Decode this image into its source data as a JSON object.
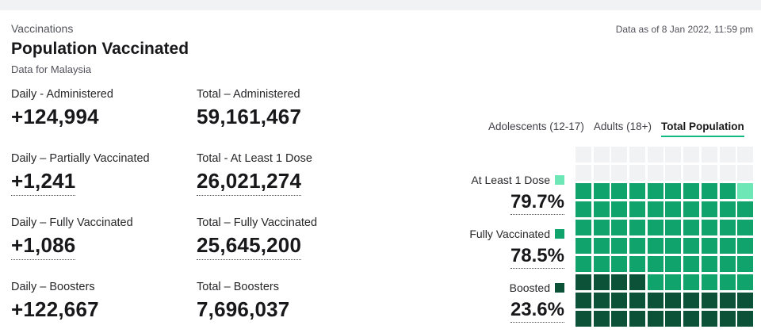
{
  "header": {
    "eyebrow": "Vaccinations",
    "title": "Population Vaccinated",
    "subtitle": "Data for Malaysia",
    "as_of": "Data as of 8 Jan 2022, 11:59 pm"
  },
  "stats": {
    "daily_administered": {
      "label": "Daily - Administered",
      "value": "+124,994"
    },
    "total_administered": {
      "label": "Total – Administered",
      "value": "59,161,467"
    },
    "daily_partial": {
      "label": "Daily – Partially Vaccinated",
      "value": "+1,241"
    },
    "total_at_least_1": {
      "label": "Total - At Least 1 Dose",
      "value": "26,021,274"
    },
    "daily_full": {
      "label": "Daily – Fully Vaccinated",
      "value": "+1,086"
    },
    "total_full": {
      "label": "Total – Fully Vaccinated",
      "value": "25,645,200"
    },
    "daily_boosters": {
      "label": "Daily – Boosters",
      "value": "+122,667"
    },
    "total_boosters": {
      "label": "Total – Boosters",
      "value": "7,696,037"
    }
  },
  "tabs": [
    {
      "label": "Adolescents (12-17)",
      "active": false
    },
    {
      "label": "Adults (18+)",
      "active": false
    },
    {
      "label": "Total Population",
      "active": true
    }
  ],
  "legend": {
    "at_least_1": {
      "label": "At Least 1 Dose",
      "value": "79.7%",
      "color": "#6ee7b7"
    },
    "fully": {
      "label": "Fully Vaccinated",
      "value": "78.5%",
      "color": "#10a36b"
    },
    "boosted": {
      "label": "Boosted",
      "value": "23.6%",
      "color": "#0b5238"
    }
  },
  "waffle": {
    "percent_at_least_1": 79.7,
    "percent_fully": 78.5,
    "percent_boosted": 23.6,
    "colors": {
      "empty": "#f1f2f4",
      "at_least_1": "#6ee7b7",
      "fully": "#10a36b",
      "boosted": "#0b5238"
    }
  }
}
